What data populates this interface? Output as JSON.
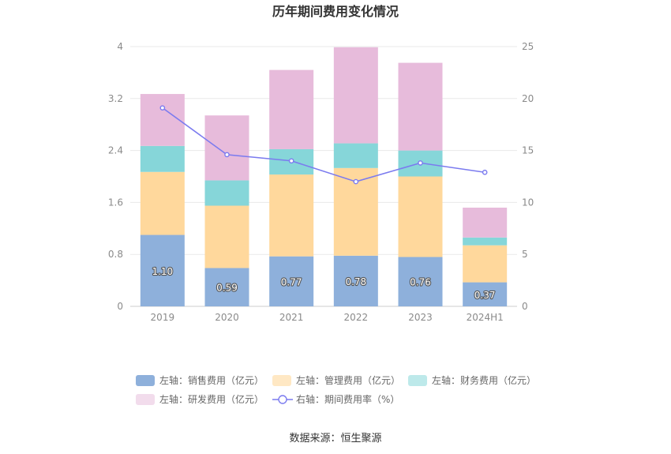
{
  "chart_data": {
    "type": "bar",
    "title": "历年期间费用变化情况",
    "categories": [
      "2019",
      "2020",
      "2021",
      "2022",
      "2023",
      "2024H1"
    ],
    "left_axis": {
      "ylim": [
        0,
        4
      ],
      "ticks": [
        "0",
        "0.8",
        "1.6",
        "2.4",
        "3.2",
        "4"
      ]
    },
    "right_axis": {
      "ylim": [
        0,
        25
      ],
      "ticks": [
        "0",
        "5",
        "10",
        "15",
        "20",
        "25"
      ]
    },
    "series": [
      {
        "name": "左轴：销售费用（亿元）",
        "axis": "left",
        "stack": true,
        "color": "#8eb0db",
        "legend_color": "#8eb0db",
        "values": [
          1.1,
          0.59,
          0.77,
          0.78,
          0.76,
          0.37
        ],
        "labels": [
          "1.10",
          "0.59",
          "0.77",
          "0.78",
          "0.76",
          "0.37"
        ]
      },
      {
        "name": "左轴：管理费用（亿元）",
        "axis": "left",
        "stack": true,
        "color": "#ffd89c",
        "legend_color": "#ffe8c4",
        "values": [
          0.97,
          0.96,
          1.26,
          1.35,
          1.24,
          0.57
        ]
      },
      {
        "name": "左轴：财务费用（亿元）",
        "axis": "left",
        "stack": true,
        "color": "#86d6d9",
        "legend_color": "#bde9ea",
        "values": [
          0.4,
          0.39,
          0.39,
          0.38,
          0.4,
          0.12
        ]
      },
      {
        "name": "左轴：研发费用（亿元）",
        "axis": "left",
        "stack": true,
        "color": "#e7bbdb",
        "legend_color": "#f2dcec",
        "values": [
          0.8,
          1.0,
          1.22,
          1.48,
          1.35,
          0.46
        ]
      },
      {
        "name": "右轴：期间费用率（%）",
        "axis": "right",
        "type": "line",
        "color": "#7b7bef",
        "values": [
          19.1,
          14.6,
          14.0,
          12.0,
          13.8,
          12.9
        ]
      }
    ],
    "source": "数据来源：恒生聚源"
  }
}
